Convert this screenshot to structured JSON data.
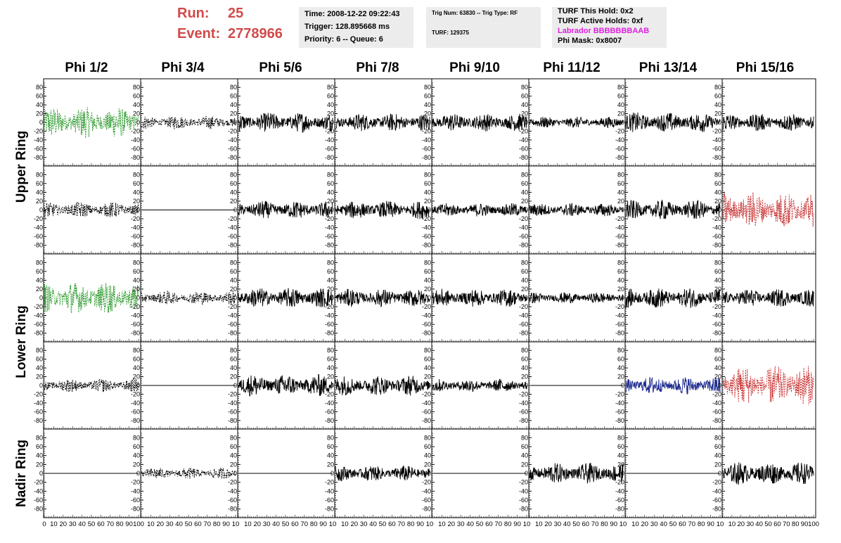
{
  "header": {
    "run_label": "Run:",
    "run_value": "25",
    "event_label": "Event:",
    "event_value": "2778966",
    "box1": {
      "time": "Time: 2008-12-22 09:22:43",
      "trigger": "Trigger: 128.895668 ms",
      "priority": "Priority: 6 -- Queue: 6"
    },
    "box2": {
      "trig": "Trig Num: 63830 -- Trig Type: RF",
      "turf": "TURF: 129375"
    },
    "box3": {
      "hold": "TURF This Hold: 0x2",
      "active": "TURF Active Holds: 0xf",
      "labrador": "Labrador BBBBBBBAAB",
      "phimask": "Phi Mask: 0x8007"
    },
    "colors": {
      "run_text": "#d24a4a",
      "labrador_text": "#e020e0",
      "box_bg": "#ececec"
    }
  },
  "columns": [
    "Phi 1/2",
    "Phi 3/4",
    "Phi 5/6",
    "Phi 7/8",
    "Phi 9/10",
    "Phi 11/12",
    "Phi 13/14",
    "Phi 15/16"
  ],
  "rows": [
    "Upper Ring",
    "Lower Ring",
    "Nadir Ring"
  ],
  "chart_data": {
    "type": "line",
    "description_axes": "8 columns x 5 panel rows of waveform traces",
    "xlim": [
      0,
      100
    ],
    "ylim": [
      -90,
      90
    ],
    "ytick_values": [
      -80,
      -60,
      -40,
      -20,
      0,
      20,
      40,
      60,
      80
    ],
    "ytick_labels": [
      "-80",
      "-60",
      "-40",
      "-20",
      "0",
      "20",
      "40",
      "60",
      "80"
    ],
    "xtick_values": [
      0,
      10,
      20,
      30,
      40,
      50,
      60,
      70,
      80,
      90,
      100
    ],
    "xtick_labels_first": [
      "0",
      "10",
      "20",
      "30",
      "40",
      "50",
      "60",
      "70",
      "80",
      "90",
      "100"
    ],
    "xtick_labels_inner": [
      "10",
      "20",
      "30",
      "40",
      "50",
      "60",
      "70",
      "80",
      "90",
      "10"
    ],
    "xtick_labels_last": [
      "10",
      "20",
      "30",
      "40",
      "50",
      "60",
      "70",
      "80",
      "90",
      "100"
    ],
    "style_colors": {
      "solid": "#000000",
      "dash": "#000000",
      "green": "#2e9a2e",
      "red": "#c83232",
      "blue": "#1f2c8f",
      "flat": "#000000"
    },
    "panels": [
      [
        "green",
        "dash",
        "solid",
        "solid",
        "solid",
        "solid",
        "solid",
        "solid"
      ],
      [
        "dash",
        "flat",
        "solid",
        "solid",
        "solid",
        "solid",
        "solid",
        "red"
      ],
      [
        "green",
        "dash",
        "solid",
        "solid",
        "solid",
        "solid",
        "solid",
        "solid"
      ],
      [
        "dash",
        "flat",
        "solid",
        "solid",
        "solid",
        "flat",
        "blue",
        "red"
      ],
      [
        "flat",
        "dash",
        "flat",
        "solid",
        "flat",
        "solid",
        "flat",
        "solid"
      ]
    ],
    "amplitudes": [
      [
        28,
        12,
        18,
        16,
        16,
        10,
        18,
        16
      ],
      [
        14,
        0,
        16,
        16,
        12,
        12,
        18,
        32
      ],
      [
        28,
        12,
        18,
        16,
        16,
        10,
        18,
        16
      ],
      [
        12,
        0,
        20,
        18,
        12,
        0,
        16,
        36
      ],
      [
        0,
        10,
        0,
        14,
        0,
        18,
        0,
        20
      ]
    ]
  }
}
